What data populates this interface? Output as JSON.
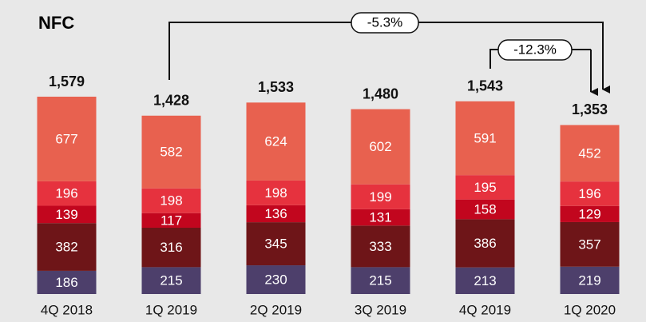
{
  "chart_data": {
    "type": "stacked_bar",
    "title": "NFC",
    "categories": [
      "4Q 2018",
      "1Q 2019",
      "2Q 2019",
      "3Q 2019",
      "4Q 2019",
      "1Q 2020"
    ],
    "series": [
      {
        "color": "#4d3f6b",
        "values": [
          186,
          215,
          230,
          215,
          213,
          219
        ]
      },
      {
        "color": "#6e1518",
        "values": [
          382,
          316,
          345,
          333,
          386,
          357
        ]
      },
      {
        "color": "#c2061e",
        "values": [
          139,
          117,
          136,
          131,
          158,
          129
        ]
      },
      {
        "color": "#e6323e",
        "values": [
          196,
          198,
          198,
          199,
          195,
          196
        ]
      },
      {
        "color": "#e8614f",
        "values": [
          677,
          582,
          624,
          602,
          591,
          452
        ]
      }
    ],
    "totals": {
      "values": [
        1579,
        1428,
        1533,
        1480,
        1543,
        1353
      ],
      "value_labels": [
        "1,579",
        "1,428",
        "1,533",
        "1,480",
        "1,543",
        "1,353"
      ]
    },
    "annotations": [
      "-5.3%",
      "-12.3%"
    ]
  }
}
